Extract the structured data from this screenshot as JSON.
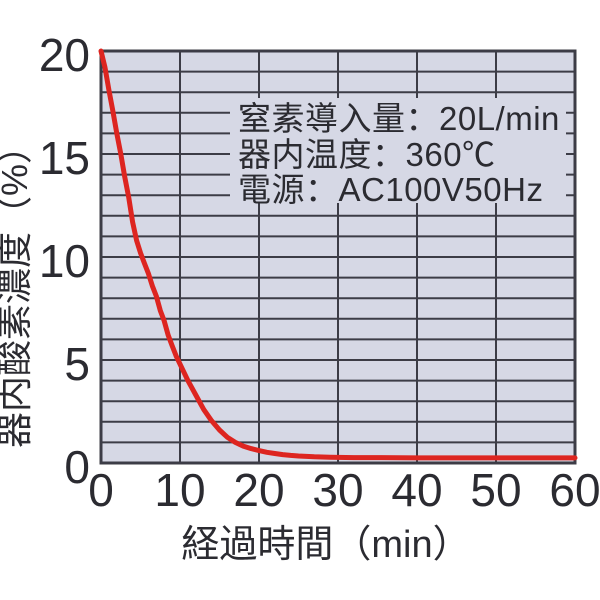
{
  "colors": {
    "plot_background": "#d6d8e5",
    "grid": "#3c3c46",
    "curve": "#dd2520",
    "text": "#2b2b31",
    "page_background": "#ffffff"
  },
  "annotation": {
    "lines": [
      "窒素導入量：20L/min",
      "器内温度：360℃",
      "電源：AC100V50Hz"
    ]
  },
  "chart_data": {
    "type": "line",
    "title": "",
    "xlabel": "経過時間（min）",
    "ylabel": "器内酸素濃度（%）",
    "xlim": [
      0,
      60
    ],
    "ylim": [
      0,
      20
    ],
    "x_ticks": [
      0,
      10,
      20,
      30,
      40,
      50,
      60
    ],
    "y_ticks": [
      0,
      5,
      10,
      15,
      20
    ],
    "x_grid_step": 10,
    "y_grid_step": 1,
    "grid": true,
    "legend": false,
    "annotations": [
      "窒素導入量：20L/min",
      "器内温度：360℃",
      "電源：AC100V50Hz"
    ],
    "series": [
      {
        "name": "器内酸素濃度",
        "color": "#dd2520",
        "points": [
          [
            0,
            20.0
          ],
          [
            0.5,
            19.2
          ],
          [
            1,
            18.1
          ],
          [
            1.5,
            17.1
          ],
          [
            2,
            16.0
          ],
          [
            2.5,
            15.0
          ],
          [
            3,
            13.9
          ],
          [
            3.5,
            12.9
          ],
          [
            4,
            11.7
          ],
          [
            4.5,
            10.8
          ],
          [
            5,
            10.2
          ],
          [
            5.5,
            9.7
          ],
          [
            6,
            9.2
          ],
          [
            6.5,
            8.6
          ],
          [
            7,
            8.1
          ],
          [
            7.5,
            7.4
          ],
          [
            8,
            6.9
          ],
          [
            8.5,
            6.2
          ],
          [
            9,
            5.7
          ],
          [
            9.5,
            5.2
          ],
          [
            10,
            4.8
          ],
          [
            11,
            4.0
          ],
          [
            12,
            3.3
          ],
          [
            13,
            2.6
          ],
          [
            14,
            2.05
          ],
          [
            15,
            1.6
          ],
          [
            16,
            1.25
          ],
          [
            17,
            1.0
          ],
          [
            18,
            0.82
          ],
          [
            19,
            0.7
          ],
          [
            20,
            0.6
          ],
          [
            21,
            0.52
          ],
          [
            22,
            0.46
          ],
          [
            23,
            0.41
          ],
          [
            24,
            0.37
          ],
          [
            25,
            0.34
          ],
          [
            26,
            0.32
          ],
          [
            27,
            0.3
          ],
          [
            28,
            0.29
          ],
          [
            29,
            0.28
          ],
          [
            30,
            0.27
          ],
          [
            32,
            0.26
          ],
          [
            35,
            0.26
          ],
          [
            40,
            0.25
          ],
          [
            45,
            0.25
          ],
          [
            50,
            0.25
          ],
          [
            55,
            0.25
          ],
          [
            60,
            0.25
          ]
        ]
      }
    ]
  }
}
